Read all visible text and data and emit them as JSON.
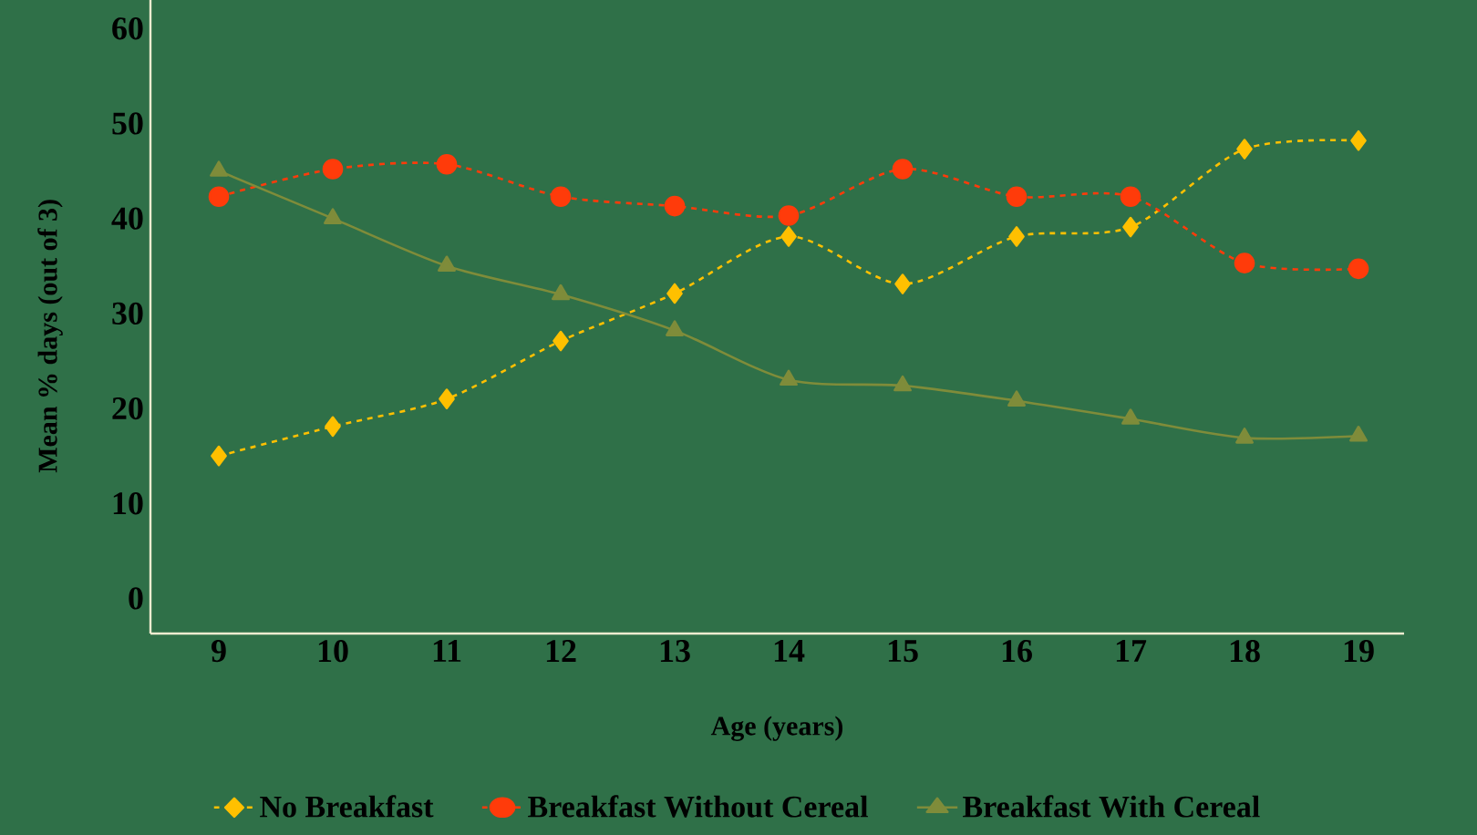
{
  "chart_data": {
    "type": "line",
    "xlabel": "Age (years)",
    "ylabel": "Mean % days (out of 3)",
    "categories": [
      "9",
      "10",
      "11",
      "12",
      "13",
      "14",
      "15",
      "16",
      "17",
      "18",
      "19"
    ],
    "ylim": [
      -3.7,
      63
    ],
    "yticks": [
      0,
      10,
      20,
      30,
      40,
      50,
      60
    ],
    "grid": false,
    "legend": "bottom",
    "series": [
      {
        "name": "No Breakfast",
        "color": "#ffc000",
        "marker": "diamond",
        "line_style": "dashed",
        "values": [
          15.0,
          18.1,
          21.0,
          27.1,
          32.1,
          38.1,
          33.1,
          38.1,
          39.1,
          47.3,
          48.2
        ]
      },
      {
        "name": "Breakfast Without Cereal",
        "color": "#ff3b0a",
        "marker": "circle",
        "line_style": "dashed",
        "values": [
          42.3,
          45.2,
          45.7,
          42.3,
          41.3,
          40.3,
          45.2,
          42.3,
          42.3,
          35.3,
          34.7
        ]
      },
      {
        "name": "Breakfast With Cereal",
        "color": "#7f8c3a",
        "marker": "triangle",
        "line_style": "solid",
        "values": [
          45.0,
          40.0,
          35.0,
          32.0,
          28.2,
          23.0,
          22.4,
          20.8,
          18.9,
          16.9,
          17.1
        ]
      }
    ]
  }
}
